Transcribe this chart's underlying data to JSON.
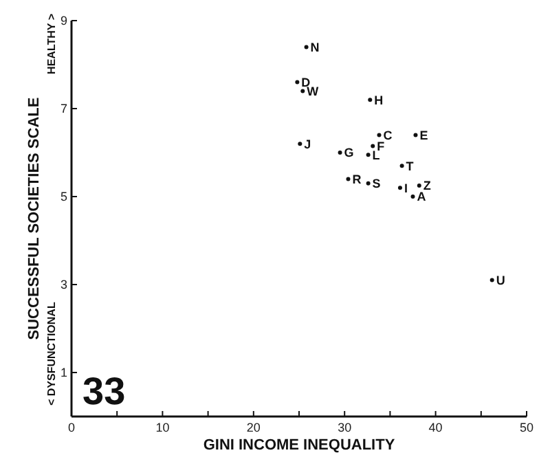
{
  "chart_data": {
    "type": "scatter",
    "xlabel": "GINI INCOME INEQUALITY",
    "ylabel": "SUCCESSFUL SOCIETIES SCALE",
    "marker": "circle",
    "grid": false,
    "xlim": [
      0,
      50
    ],
    "ylim": [
      0,
      9
    ],
    "xticks": [
      0,
      {
        "value": 5,
        "label": null
      },
      10,
      {
        "value": 15,
        "label": null
      },
      20,
      {
        "value": 25,
        "label": null
      },
      30,
      {
        "value": 35,
        "label": null
      },
      40,
      {
        "value": 45,
        "label": null
      },
      50
    ],
    "yticks": [
      1,
      3,
      5,
      7,
      9
    ],
    "annotations": [
      "< DYSFUNCTIONAL",
      "HEALTHY >",
      "33"
    ],
    "series": [
      {
        "name": "N",
        "color": "#111111",
        "x": [
          25.8
        ],
        "values": [
          8.4
        ]
      },
      {
        "name": "D",
        "color": "#111111",
        "x": [
          24.8
        ],
        "values": [
          7.6
        ]
      },
      {
        "name": "W",
        "color": "#111111",
        "x": [
          25.4
        ],
        "values": [
          7.4
        ]
      },
      {
        "name": "H",
        "color": "#111111",
        "x": [
          32.8
        ],
        "values": [
          7.2
        ]
      },
      {
        "name": "J",
        "color": "#111111",
        "x": [
          25.1
        ],
        "values": [
          6.2
        ]
      },
      {
        "name": "C",
        "color": "#111111",
        "x": [
          33.8
        ],
        "values": [
          6.4
        ]
      },
      {
        "name": "E",
        "color": "#111111",
        "x": [
          37.8
        ],
        "values": [
          6.4
        ]
      },
      {
        "name": "G",
        "color": "#111111",
        "x": [
          29.5
        ],
        "values": [
          6.0
        ]
      },
      {
        "name": "F",
        "color": "#111111",
        "x": [
          33.1
        ],
        "values": [
          6.15
        ]
      },
      {
        "name": "L",
        "color": "#111111",
        "x": [
          32.6
        ],
        "values": [
          5.95
        ]
      },
      {
        "name": "T",
        "color": "#111111",
        "x": [
          36.3
        ],
        "values": [
          5.7
        ]
      },
      {
        "name": "R",
        "color": "#111111",
        "x": [
          30.4
        ],
        "values": [
          5.4
        ]
      },
      {
        "name": "S",
        "color": "#111111",
        "x": [
          32.6
        ],
        "values": [
          5.3
        ]
      },
      {
        "name": "I",
        "color": "#111111",
        "x": [
          36.1
        ],
        "values": [
          5.2
        ]
      },
      {
        "name": "Z",
        "color": "#111111",
        "x": [
          38.2
        ],
        "values": [
          5.25
        ]
      },
      {
        "name": "A",
        "color": "#111111",
        "x": [
          37.5
        ],
        "values": [
          5.0
        ]
      },
      {
        "name": "U",
        "color": "#111111",
        "x": [
          46.2
        ],
        "values": [
          3.1
        ]
      }
    ]
  }
}
